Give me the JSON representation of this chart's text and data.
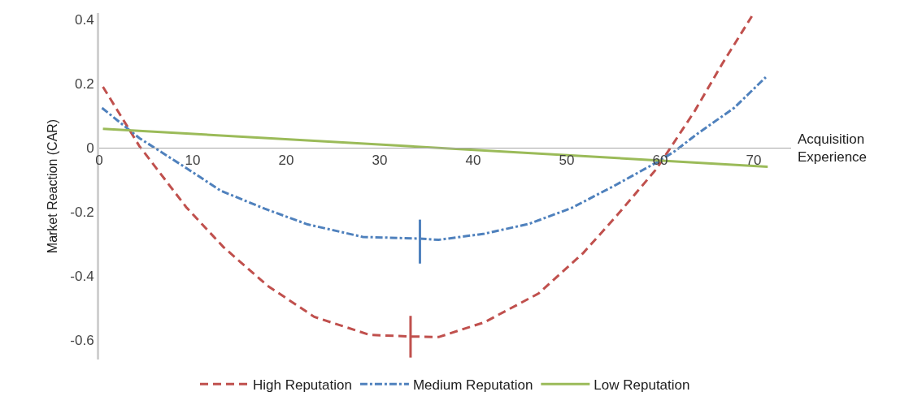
{
  "chart_data": {
    "type": "line",
    "xlabel": "Acquisition Experience",
    "ylabel": "Market Reaction (CAR)",
    "xlim": [
      0,
      74
    ],
    "xticks": [
      0,
      10,
      20,
      30,
      40,
      50,
      60,
      70
    ],
    "ylim": [
      -0.66,
      0.42
    ],
    "yticks": [
      0.4,
      0.2,
      0,
      -0.2,
      -0.4,
      -0.6
    ],
    "legend": "bottom",
    "marker": "none",
    "series": [
      {
        "name": "High Reputation",
        "color": "#c0504d",
        "line_style": "dashed",
        "x": [
          0.4,
          4.3,
          9.3,
          13.3,
          18,
          23,
          28.9,
          32.9,
          36.3,
          41.2,
          47,
          51.8,
          55.4,
          59.6,
          61.1,
          63.7,
          66.6,
          69.8
        ],
        "values": [
          0.19,
          0.005,
          -0.185,
          -0.31,
          -0.43,
          -0.527,
          -0.583,
          -0.588,
          -0.59,
          -0.544,
          -0.454,
          -0.327,
          -0.21,
          -0.066,
          0,
          0.115,
          0.26,
          0.41
        ]
      },
      {
        "name": "Medium Reputation",
        "color": "#4f81bd",
        "line_style": "dashdot",
        "x": [
          0.3,
          4.3,
          9.3,
          13,
          17.7,
          22.3,
          28.2,
          34.1,
          36.3,
          41.2,
          46,
          50.5,
          55,
          59.6,
          61.5,
          64,
          67.9,
          71.3
        ],
        "values": [
          0.124,
          0.03,
          -0.063,
          -0.134,
          -0.19,
          -0.239,
          -0.278,
          -0.283,
          -0.287,
          -0.268,
          -0.237,
          -0.188,
          -0.12,
          -0.046,
          -0.012,
          0.044,
          0.124,
          0.22
        ]
      },
      {
        "name": "Low Reputation",
        "color": "#9bbb59",
        "line_style": "solid",
        "x": [
          0.4,
          71.5
        ],
        "values": [
          0.059,
          -0.059
        ]
      },
      {
        "color": "#c0504d",
        "line_style": "solid",
        "x": [
          33.3,
          33.3
        ],
        "values": [
          -0.524,
          -0.654
        ]
      },
      {
        "color": "#4f81bd",
        "line_style": "solid",
        "x": [
          34.3,
          34.3
        ],
        "values": [
          -0.224,
          -0.361
        ]
      }
    ]
  }
}
